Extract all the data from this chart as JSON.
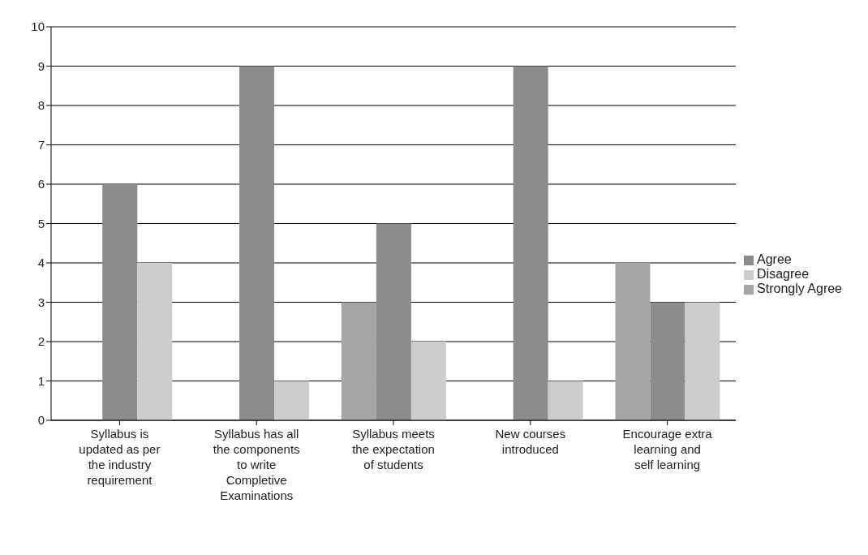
{
  "chart_data": {
    "type": "bar",
    "categories": [
      "Syllabus is updated as per the industry requirement",
      "Syllabus has all the components to write Completive Examinations",
      "Syllabus meets the expectation of students",
      "New courses introduced",
      "Encourage extra learning and self learning"
    ],
    "series": [
      {
        "name": "Strongly Agree",
        "color": "#a6a6a6",
        "values": [
          0,
          0,
          3,
          0,
          4
        ]
      },
      {
        "name": "Agree",
        "color": "#8c8c8c",
        "values": [
          6,
          9,
          5,
          9,
          3
        ]
      },
      {
        "name": "Disagree",
        "color": "#cdcdcd",
        "values": [
          4,
          1,
          2,
          1,
          3
        ]
      }
    ],
    "ylim": [
      0,
      10
    ],
    "yticks": [
      0,
      1,
      2,
      3,
      4,
      5,
      6,
      7,
      8,
      9,
      10
    ],
    "grid": "y",
    "legend": "right"
  }
}
